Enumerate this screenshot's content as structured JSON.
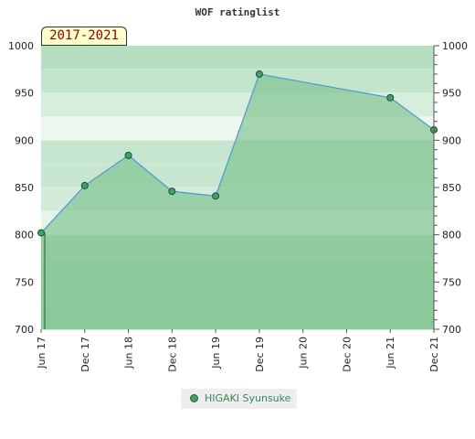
{
  "chart_data": {
    "type": "area",
    "title": "WOF ratinglist",
    "period_label": "2017-2021",
    "x_ticks": [
      "Jun 17",
      "Dec 17",
      "Jun 18",
      "Dec 18",
      "Jun 19",
      "Dec 19",
      "Jun 20",
      "Dec 20",
      "Jun 21",
      "Dec 21"
    ],
    "y_ticks": [
      700,
      750,
      800,
      850,
      900,
      950,
      1000
    ],
    "ylim": [
      700,
      1000
    ],
    "grid": true,
    "legend_position": "bottom",
    "series": [
      {
        "name": "HIGAKI Syunsuke",
        "x": [
          "Jun 17",
          "Dec 17",
          "Jun 18",
          "Dec 18",
          "Jun 19",
          "Dec 19",
          "Jun 21",
          "Dec 21"
        ],
        "values": [
          802,
          852,
          884,
          846,
          841,
          970,
          945,
          911
        ]
      }
    ],
    "colors": {
      "line": "#4f96d8",
      "fill": "#7cc28e",
      "marker": "#3fa268"
    }
  }
}
